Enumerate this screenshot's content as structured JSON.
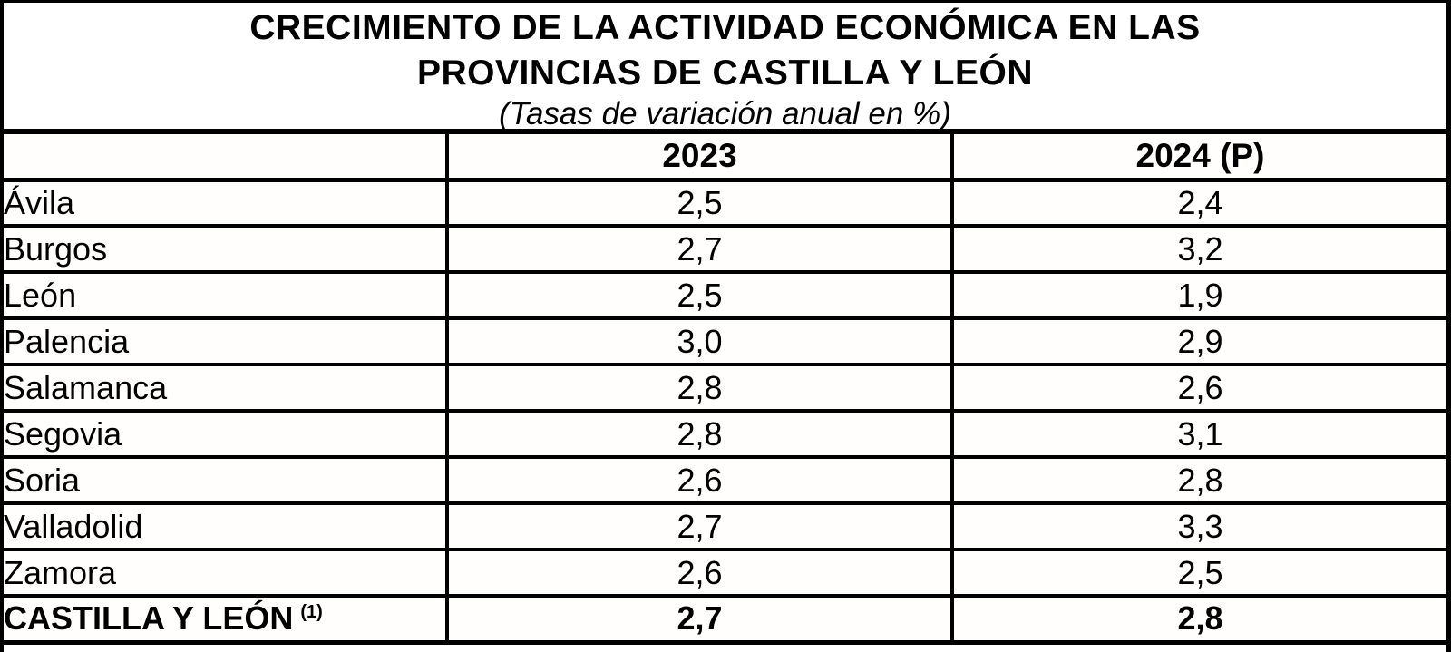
{
  "title": {
    "line1": "CRECIMIENTO DE LA ACTIVIDAD ECONÓMICA EN LAS",
    "line2": "PROVINCIAS DE CASTILLA Y LEÓN",
    "subtitle": "(Tasas de variación anual en %)"
  },
  "colors": {
    "border": "#000000",
    "text": "#000000",
    "background": "#ffffff"
  },
  "table": {
    "columns": {
      "province": "",
      "y2023": "2023",
      "y2024": "2024 (P)"
    },
    "rows": [
      {
        "province": "Ávila",
        "y2023": "2,5",
        "y2024": "2,4"
      },
      {
        "province": "Burgos",
        "y2023": "2,7",
        "y2024": "3,2"
      },
      {
        "province": "León",
        "y2023": "2,5",
        "y2024": "1,9"
      },
      {
        "province": "Palencia",
        "y2023": "3,0",
        "y2024": "2,9"
      },
      {
        "province": "Salamanca",
        "y2023": "2,8",
        "y2024": "2,6"
      },
      {
        "province": "Segovia",
        "y2023": "2,8",
        "y2024": "3,1"
      },
      {
        "province": "Soria",
        "y2023": "2,6",
        "y2024": "2,8"
      },
      {
        "province": "Valladolid",
        "y2023": "2,7",
        "y2024": "3,3"
      },
      {
        "province": "Zamora",
        "y2023": "2,6",
        "y2024": "2,5"
      }
    ],
    "total_row": {
      "label": "CASTILLA Y LEÓN",
      "footnote_marker": "(1)",
      "y2023": "2,7",
      "y2024": "2,8"
    }
  },
  "chart_data": {
    "type": "table",
    "title": "CRECIMIENTO DE LA ACTIVIDAD ECONÓMICA EN LAS PROVINCIAS DE CASTILLA Y LEÓN",
    "subtitle": "(Tasas de variación anual en %)",
    "unit": "annual variation rate, %",
    "categories": [
      "Ávila",
      "Burgos",
      "León",
      "Palencia",
      "Salamanca",
      "Segovia",
      "Soria",
      "Valladolid",
      "Zamora",
      "CASTILLA Y LEÓN (1)"
    ],
    "series": [
      {
        "name": "2023",
        "values": [
          2.5,
          2.7,
          2.5,
          3.0,
          2.8,
          2.8,
          2.6,
          2.7,
          2.6,
          2.7
        ]
      },
      {
        "name": "2024 (P)",
        "values": [
          2.4,
          3.2,
          1.9,
          2.9,
          2.6,
          3.1,
          2.8,
          3.3,
          2.5,
          2.8
        ]
      }
    ]
  }
}
